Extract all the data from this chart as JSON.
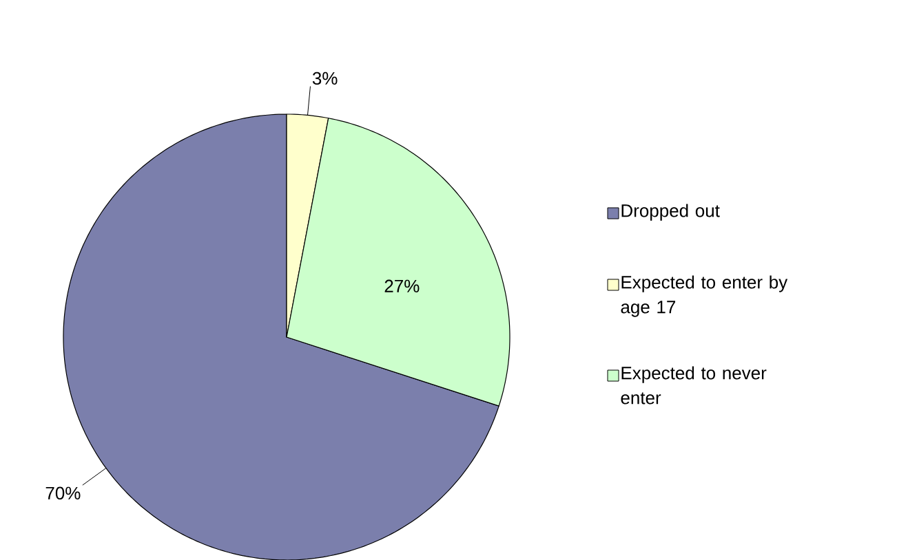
{
  "chart_data": {
    "type": "pie",
    "categories": [
      "Dropped out",
      "Expected to enter by age 17",
      "Expected to never enter"
    ],
    "values": [
      70,
      3,
      27
    ],
    "colors": [
      "#7b7fac",
      "#ffffcc",
      "#ccffcc"
    ],
    "value_labels": [
      "70%",
      "3%",
      "27%"
    ],
    "legend": "right"
  }
}
